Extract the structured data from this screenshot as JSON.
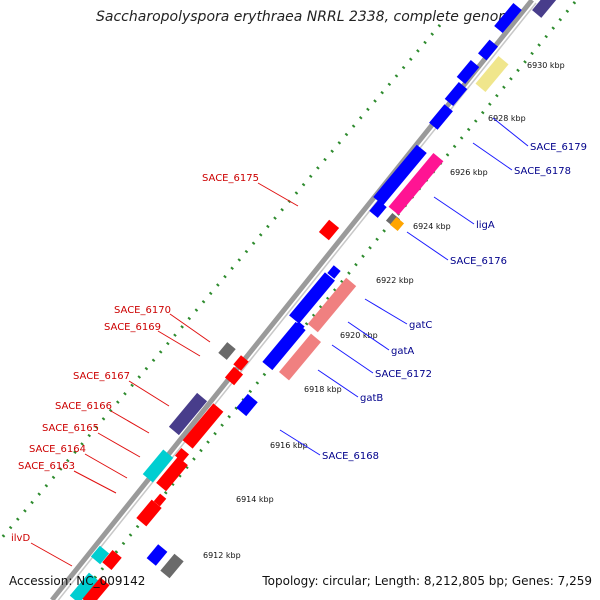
{
  "title": "Saccharopolyspora erythraea NRRL 2338, complete genome",
  "footer": {
    "accession": "Accession: NC_009142",
    "summary": "Topology: circular; Length: 8,212,805 bp; Genes: 7,259"
  },
  "colors": {
    "backbone": "#888888",
    "tick_dots": "#2e8b2e",
    "cds_plus": "#0000ff",
    "cds_minus": "#ff0000",
    "label_plus": "#00008b",
    "label_minus": "#cc0000",
    "trna": "#ff1493",
    "rrna": "#ffa500",
    "misc": "#6a6a6a",
    "pink": "#f08080",
    "khaki": "#f0e68c",
    "slate": "#483d8b",
    "cyan": "#00ced1"
  },
  "scale_ticks": [
    "6912 kbp",
    "6914 kbp",
    "6916 kbp",
    "6918 kbp",
    "6920 kbp",
    "6922 kbp",
    "6924 kbp",
    "6926 kbp",
    "6928 kbp",
    "6930 kbp"
  ],
  "gene_labels_plus_strand": [
    "SACE_6179",
    "SACE_6178",
    "ligA",
    "SACE_6176",
    "gatC",
    "gatA",
    "SACE_6172",
    "gatB",
    "SACE_6168"
  ],
  "gene_labels_minus_strand": [
    "SACE_6175",
    "SACE_6170",
    "SACE_6169",
    "SACE_6167",
    "SACE_6166",
    "SACE_6165",
    "SACE_6164",
    "SACE_6163",
    "ilvD"
  ]
}
